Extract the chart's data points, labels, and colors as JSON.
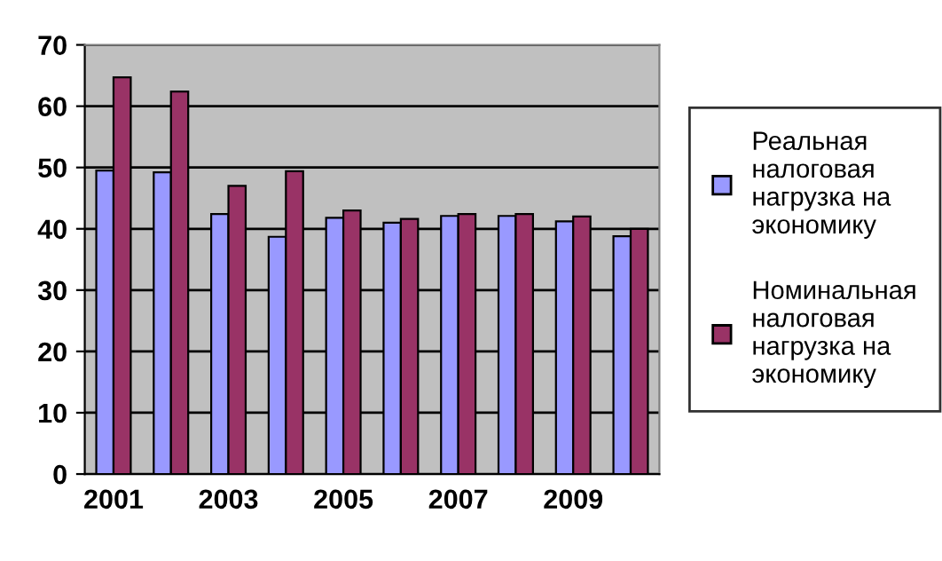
{
  "chart_data": {
    "type": "bar",
    "categories": [
      "2001",
      null,
      "2003",
      null,
      "2005",
      null,
      "2007",
      null,
      "2009",
      null
    ],
    "series": [
      {
        "name": "Реальная налоговая нагрузка на экономику",
        "color": "#9999ff",
        "values": [
          49.5,
          49.2,
          42.4,
          38.7,
          41.8,
          41.0,
          42.1,
          42.1,
          41.2,
          38.8
        ]
      },
      {
        "name": "Номинальная налоговая нагрузка на экономику",
        "color": "#993366",
        "values": [
          64.7,
          62.4,
          47.0,
          49.4,
          43.0,
          41.6,
          42.4,
          42.4,
          42.0,
          40.0
        ]
      }
    ],
    "ylim": [
      0,
      70
    ],
    "yticks": [
      0,
      10,
      20,
      30,
      40,
      50,
      60,
      70
    ],
    "grid": "y",
    "legend": "right"
  }
}
